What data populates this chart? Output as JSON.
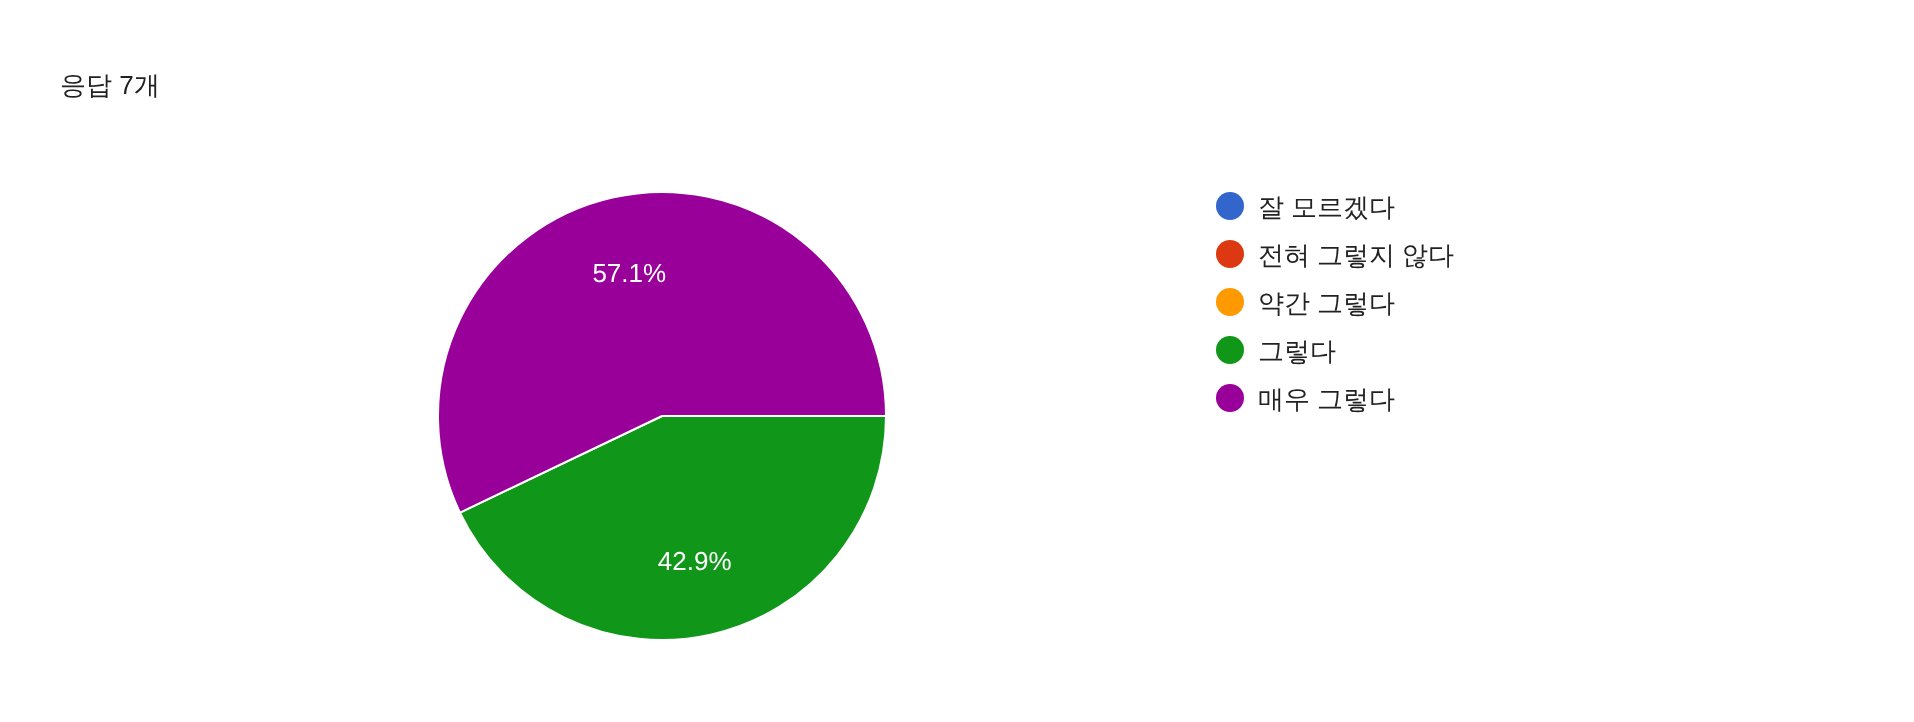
{
  "chart_data": {
    "type": "pie",
    "title": "응답 7개",
    "categories": [
      "잘 모르겠다",
      "전혀 그렇지 않다",
      "약간 그렇다",
      "그렇다",
      "매우 그렇다"
    ],
    "values": [
      0,
      0,
      0,
      42.9,
      57.1
    ],
    "colors": [
      "#3366cc",
      "#dc3912",
      "#ff9900",
      "#109618",
      "#990099"
    ],
    "value_labels": [
      null,
      null,
      null,
      "42.9%",
      "57.1%"
    ],
    "legend": "right"
  }
}
